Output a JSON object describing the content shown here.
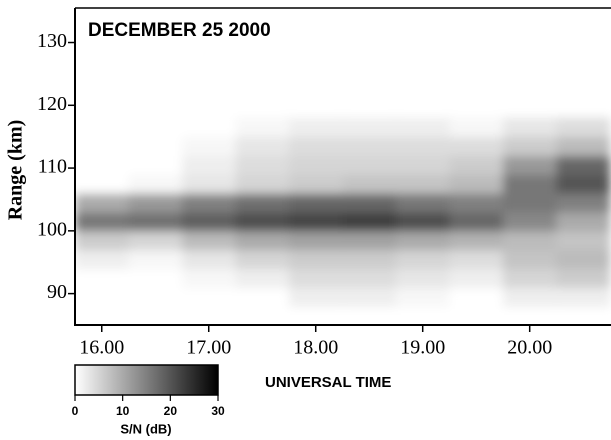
{
  "chart_data": {
    "type": "heatmap",
    "title": "DECEMBER 25 2000",
    "xlabel": "UNIVERSAL TIME",
    "ylabel": "Range (km)",
    "x_bins": [
      15.75,
      16.25,
      16.75,
      17.25,
      17.75,
      18.25,
      18.75,
      19.25,
      19.75,
      20.25,
      20.75
    ],
    "y_bins": [
      88,
      91,
      94,
      97,
      100,
      103,
      106,
      109,
      112,
      115,
      118
    ],
    "values": [
      [
        0,
        0,
        0,
        0,
        2,
        2,
        1,
        0,
        2,
        2
      ],
      [
        0,
        0,
        1,
        2,
        4,
        4,
        3,
        2,
        5,
        6
      ],
      [
        2,
        1,
        3,
        5,
        6,
        6,
        5,
        4,
        7,
        8
      ],
      [
        6,
        5,
        8,
        10,
        11,
        11,
        10,
        9,
        8,
        7
      ],
      [
        16,
        17,
        19,
        21,
        22,
        23,
        21,
        18,
        14,
        10
      ],
      [
        10,
        12,
        15,
        17,
        18,
        18,
        16,
        15,
        16,
        15
      ],
      [
        0,
        1,
        3,
        5,
        6,
        7,
        7,
        8,
        16,
        20
      ],
      [
        0,
        0,
        2,
        4,
        5,
        5,
        5,
        6,
        12,
        18
      ],
      [
        0,
        0,
        1,
        3,
        4,
        4,
        4,
        4,
        6,
        8
      ],
      [
        0,
        0,
        0,
        1,
        2,
        2,
        2,
        1,
        3,
        4
      ]
    ],
    "colors": [
      "#ffffff",
      "#000000"
    ],
    "xlim": [
      15.75,
      20.76
    ],
    "ylim": [
      85,
      135.5
    ],
    "xticks": [
      {
        "value": 16,
        "label": "16.00"
      },
      {
        "value": 17,
        "label": "17.00"
      },
      {
        "value": 18,
        "label": "18.00"
      },
      {
        "value": 19,
        "label": "19.00"
      },
      {
        "value": 20,
        "label": "20.00"
      }
    ],
    "yticks": [
      90,
      100,
      110,
      120,
      130
    ],
    "colorbar": {
      "label": "S/N (dB)",
      "lim": [
        0,
        30
      ],
      "ticks": [
        0,
        10,
        20,
        30
      ]
    }
  }
}
